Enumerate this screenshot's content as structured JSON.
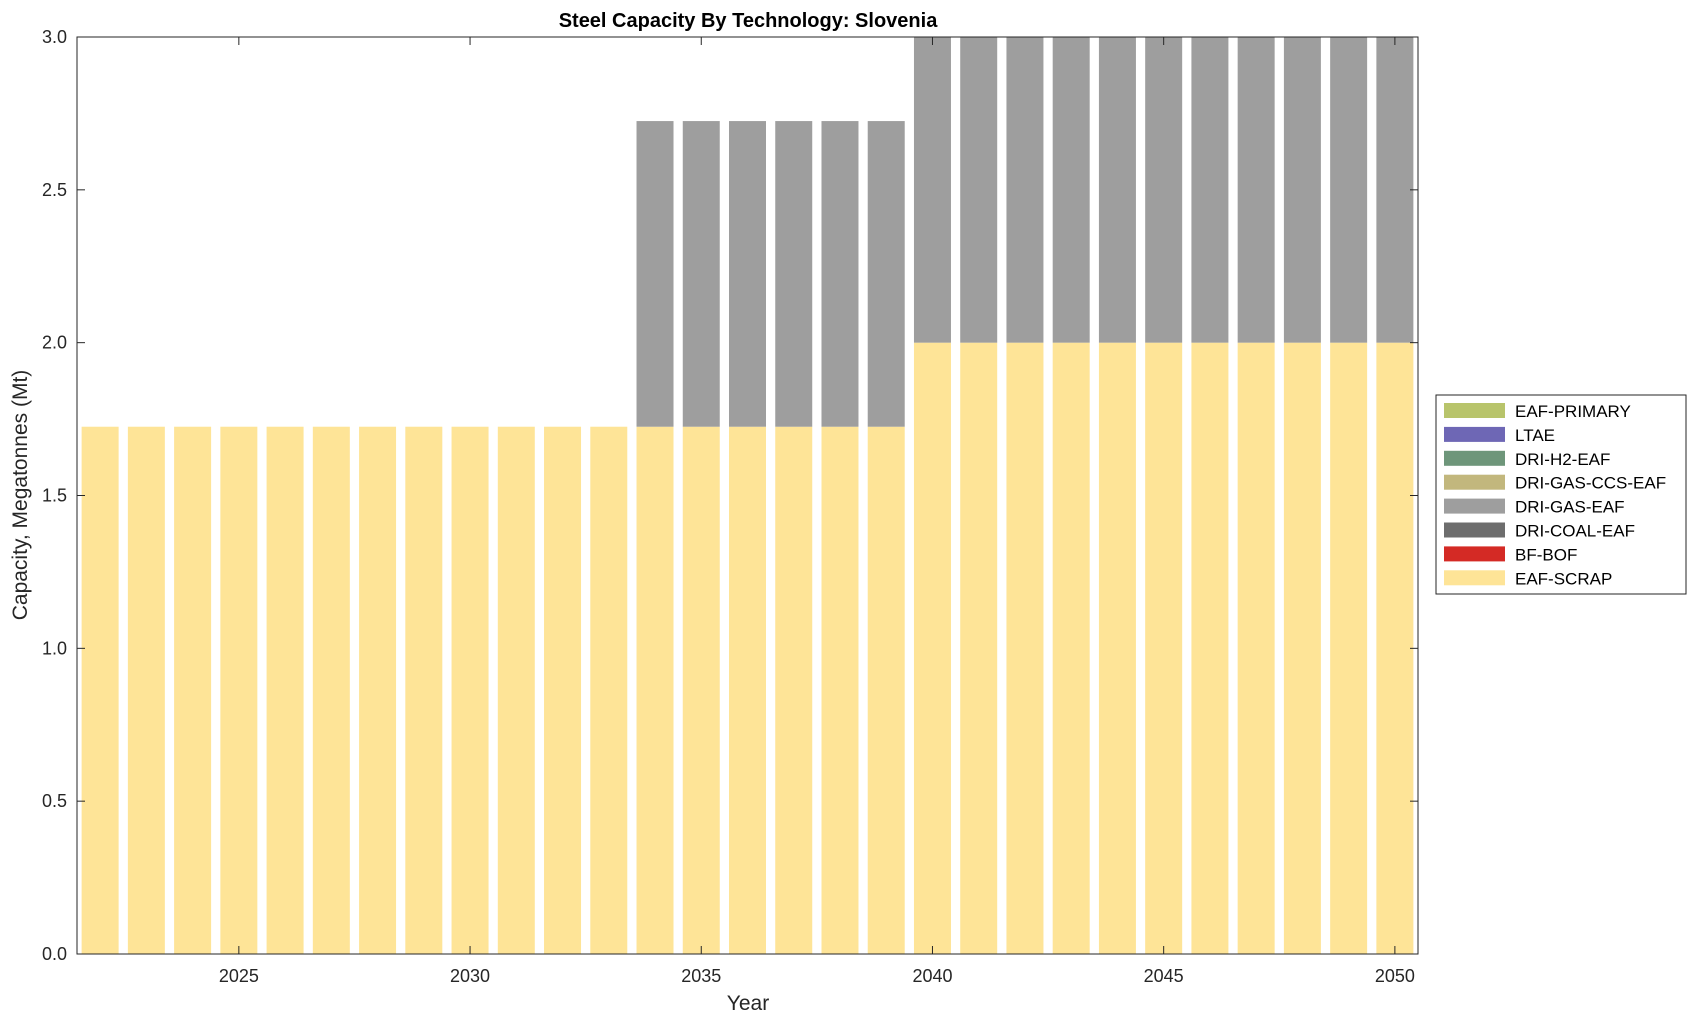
{
  "chart_data": {
    "type": "bar",
    "stacked": true,
    "title": "Steel Capacity By Technology: Slovenia",
    "xlabel": "Year",
    "ylabel": "Capacity, Megatonnes (Mt)",
    "xlim": [
      2021.5,
      2050.5
    ],
    "ylim": [
      0,
      3
    ],
    "x": [
      2022,
      2023,
      2024,
      2025,
      2026,
      2027,
      2028,
      2029,
      2030,
      2031,
      2032,
      2033,
      2034,
      2035,
      2036,
      2037,
      2038,
      2039,
      2040,
      2041,
      2042,
      2043,
      2044,
      2045,
      2046,
      2047,
      2048,
      2049,
      2050
    ],
    "xticks": [
      2025,
      2030,
      2035,
      2040,
      2045,
      2050
    ],
    "xtick_labels": [
      "2025",
      "2030",
      "2035",
      "2040",
      "2045",
      "2050"
    ],
    "yticks": [
      0,
      0.5,
      1.0,
      1.5,
      2.0,
      2.5,
      3.0
    ],
    "ytick_labels": [
      "0.0",
      "0.5",
      "1.0",
      "1.5",
      "2.0",
      "2.5",
      "3.0"
    ],
    "series": [
      {
        "name": "EAF-SCRAP",
        "color": "#fee497",
        "values": [
          1.725,
          1.725,
          1.725,
          1.725,
          1.725,
          1.725,
          1.725,
          1.725,
          1.725,
          1.725,
          1.725,
          1.725,
          1.725,
          1.725,
          1.725,
          1.725,
          1.725,
          1.725,
          2.0,
          2.0,
          2.0,
          2.0,
          2.0,
          2.0,
          2.0,
          2.0,
          2.0,
          2.0,
          2.0
        ]
      },
      {
        "name": "BF-BOF",
        "color": "#d42a25",
        "values": [
          0,
          0,
          0,
          0,
          0,
          0,
          0,
          0,
          0,
          0,
          0,
          0,
          0,
          0,
          0,
          0,
          0,
          0,
          0,
          0,
          0,
          0,
          0,
          0,
          0,
          0,
          0,
          0,
          0
        ]
      },
      {
        "name": "DRI-COAL-EAF",
        "color": "#6d6d6d",
        "values": [
          0,
          0,
          0,
          0,
          0,
          0,
          0,
          0,
          0,
          0,
          0,
          0,
          0,
          0,
          0,
          0,
          0,
          0,
          0,
          0,
          0,
          0,
          0,
          0,
          0,
          0,
          0,
          0,
          0
        ]
      },
      {
        "name": "DRI-GAS-EAF",
        "color": "#9e9e9e",
        "values": [
          0,
          0,
          0,
          0,
          0,
          0,
          0,
          0,
          0,
          0,
          0,
          0,
          1.0,
          1.0,
          1.0,
          1.0,
          1.0,
          1.0,
          1.0,
          1.0,
          1.0,
          1.0,
          1.0,
          1.0,
          1.0,
          1.0,
          1.0,
          1.0,
          1.0
        ]
      },
      {
        "name": "DRI-GAS-CCS-EAF",
        "color": "#c2b77d",
        "values": [
          0,
          0,
          0,
          0,
          0,
          0,
          0,
          0,
          0,
          0,
          0,
          0,
          0,
          0,
          0,
          0,
          0,
          0,
          0,
          0,
          0,
          0,
          0,
          0,
          0,
          0,
          0,
          0,
          0
        ]
      },
      {
        "name": "DRI-H2-EAF",
        "color": "#6e967a",
        "values": [
          0,
          0,
          0,
          0,
          0,
          0,
          0,
          0,
          0,
          0,
          0,
          0,
          0,
          0,
          0,
          0,
          0,
          0,
          0,
          0,
          0,
          0,
          0,
          0,
          0,
          0,
          0,
          0,
          0
        ]
      },
      {
        "name": "LTAE",
        "color": "#6e67b5",
        "values": [
          0,
          0,
          0,
          0,
          0,
          0,
          0,
          0,
          0,
          0,
          0,
          0,
          0,
          0,
          0,
          0,
          0,
          0,
          0,
          0,
          0,
          0,
          0,
          0,
          0,
          0,
          0,
          0,
          0
        ]
      },
      {
        "name": "EAF-PRIMARY",
        "color": "#b8c46b",
        "values": [
          0,
          0,
          0,
          0,
          0,
          0,
          0,
          0,
          0,
          0,
          0,
          0,
          0,
          0,
          0,
          0,
          0,
          0,
          0,
          0,
          0,
          0,
          0,
          0,
          0,
          0,
          0,
          0,
          0
        ]
      }
    ],
    "legend": {
      "placement": "right",
      "entries": [
        "EAF-PRIMARY",
        "LTAE",
        "DRI-H2-EAF",
        "DRI-GAS-CCS-EAF",
        "DRI-GAS-EAF",
        "DRI-COAL-EAF",
        "BF-BOF",
        "EAF-SCRAP"
      ]
    }
  }
}
